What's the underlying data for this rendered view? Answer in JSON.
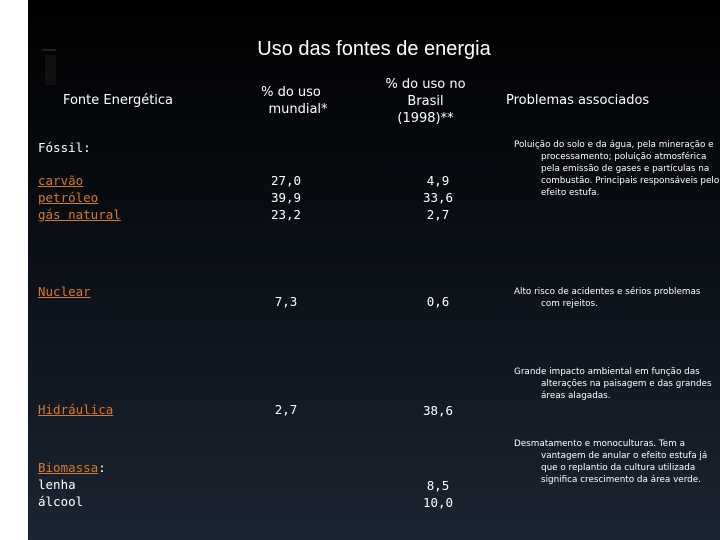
{
  "title": "Uso das fontes de energia",
  "headers": {
    "fonte": "Fonte Energética",
    "mundial": [
      "% do uso",
      "mundial*"
    ],
    "brasil": [
      "% do uso no",
      "Brasil",
      "(1998)**"
    ],
    "problemas": "Problemas associados"
  },
  "fossil": {
    "label": "Fóssil:",
    "items": [
      "carvão",
      "petróleo",
      "gás natural"
    ],
    "mundial": [
      "27,0",
      "39,9",
      "23,2"
    ],
    "brasil": [
      "4,9",
      "33,6",
      "2,7"
    ],
    "problemas": "Poluição do solo e da água, pela mineração e processamento; poluição atmosférica pela emissão de gases e partículas na combustão. Principais responsáveis pelo efeito estufa."
  },
  "nuclear": {
    "label": "Nuclear",
    "mundial": "7,3",
    "brasil": "0,6",
    "problemas": "Alto risco de acidentes e sérios problemas com rejeitos."
  },
  "hidraulica": {
    "label": "Hidráulica",
    "mundial": "2,7",
    "brasil": "38,6",
    "problemas": "Grande impacto ambiental em função das alterações na paisagem e das grandes áreas alagadas."
  },
  "biomassa": {
    "label": "Biomassa",
    "colon": ":",
    "items": [
      "lenha",
      "álcool"
    ],
    "brasil": [
      "8,5",
      "10,0"
    ],
    "problemas": "Desmatamento e monoculturas. Tem a vantagem de anular o efeito estufa já que o replantio da cultura utilizada significa crescimento da área verde."
  }
}
